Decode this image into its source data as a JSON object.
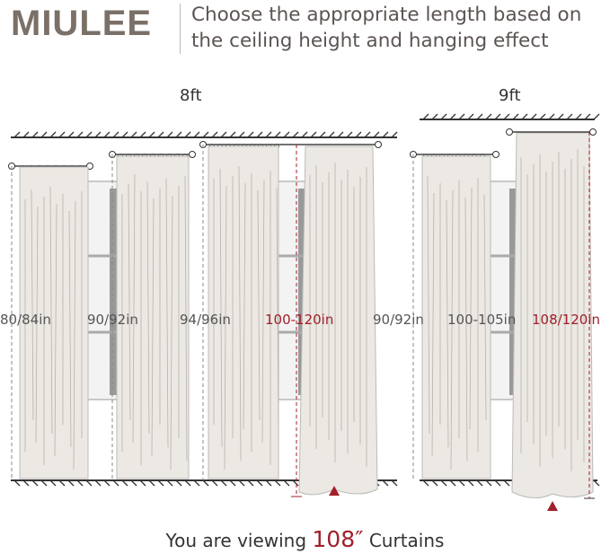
{
  "brand": {
    "logo": "MIULEE"
  },
  "heading": {
    "line1": "Choose the appropriate length based on",
    "line2": "the ceiling height and hanging effect"
  },
  "sections": [
    {
      "ceiling": "8ft",
      "lengths": [
        "80/84in",
        "90/92in",
        "94/96in",
        "100-120in"
      ]
    },
    {
      "ceiling": "9ft",
      "lengths": [
        "90/92in",
        "100-105in",
        "108/120in"
      ]
    }
  ],
  "footer": {
    "prefix": "You are viewing",
    "size": "108″",
    "suffix": "Curtains"
  },
  "colors": {
    "accent": "#a0202a",
    "brand": "#7b7068",
    "curtain": "#ece8e3"
  }
}
